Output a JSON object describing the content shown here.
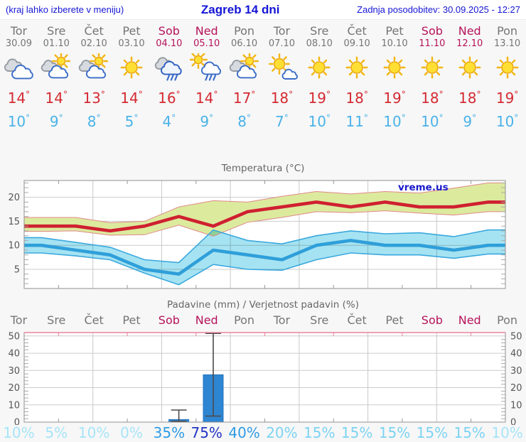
{
  "header": {
    "hint": "(kraj lahko izberete v meniju)",
    "title": "Zagreb 14 dni",
    "updated": "Zadnja posodobitev: 30.09.2025 - 12:27"
  },
  "misc": {
    "degree": "°",
    "watermark": "vreme.us"
  },
  "colors": {
    "link_blue": "#1515d6",
    "weekday_gray": "#757575",
    "weekend_crimson": "#b5135b",
    "tmax_red": "#d42a32",
    "tmin_blue": "#4ab2e8",
    "max_band_fill": "#dcea9e",
    "max_band_edge": "#e08888",
    "min_band_fill": "#a6e3f2",
    "min_band_edge": "#3aa8de",
    "bar_blue": "#2e86d3",
    "grid_gray": "#cccccc",
    "axis_gray": "#909090",
    "precip_top_pink": "#e8849e"
  },
  "days": [
    {
      "name": "Tor",
      "date": "30.09",
      "weekend": false,
      "icon": "cloudy",
      "tmax": "14",
      "tmin": "10"
    },
    {
      "name": "Sre",
      "date": "01.10",
      "weekend": false,
      "icon": "partly-cloudy",
      "tmax": "14",
      "tmin": "9"
    },
    {
      "name": "Čet",
      "date": "02.10",
      "weekend": false,
      "icon": "partly-cloudy",
      "tmax": "13",
      "tmin": "8"
    },
    {
      "name": "Pet",
      "date": "03.10",
      "weekend": false,
      "icon": "sunny",
      "tmax": "14",
      "tmin": "5"
    },
    {
      "name": "Sob",
      "date": "04.10",
      "weekend": true,
      "icon": "rain",
      "tmax": "16",
      "tmin": "4"
    },
    {
      "name": "Ned",
      "date": "05.10",
      "weekend": true,
      "icon": "sun-rain",
      "tmax": "14",
      "tmin": "9"
    },
    {
      "name": "Pon",
      "date": "06.10",
      "weekend": false,
      "icon": "partly-cloudy",
      "tmax": "17",
      "tmin": "8"
    },
    {
      "name": "Tor",
      "date": "07.10",
      "weekend": false,
      "icon": "mostly-sunny",
      "tmax": "18",
      "tmin": "7"
    },
    {
      "name": "Sre",
      "date": "08.10",
      "weekend": false,
      "icon": "sunny",
      "tmax": "19",
      "tmin": "10"
    },
    {
      "name": "Čet",
      "date": "09.10",
      "weekend": false,
      "icon": "sunny",
      "tmax": "18",
      "tmin": "11"
    },
    {
      "name": "Pet",
      "date": "10.10",
      "weekend": false,
      "icon": "sunny",
      "tmax": "19",
      "tmin": "10"
    },
    {
      "name": "Sob",
      "date": "11.10",
      "weekend": true,
      "icon": "sunny",
      "tmax": "18",
      "tmin": "10"
    },
    {
      "name": "Ned",
      "date": "12.10",
      "weekend": true,
      "icon": "sunny",
      "tmax": "18",
      "tmin": "9"
    },
    {
      "name": "Pon",
      "date": "13.10",
      "weekend": false,
      "icon": "sunny",
      "tmax": "19",
      "tmin": "10"
    }
  ],
  "chart_data": [
    {
      "type": "line",
      "title": "Temperatura (°C)",
      "categories": [
        "Tor",
        "Sre",
        "Čet",
        "Pet",
        "Sob",
        "Ned",
        "Pon",
        "Tor",
        "Sre",
        "Čet",
        "Pet",
        "Sob",
        "Ned",
        "Pon"
      ],
      "ylabel": "°C",
      "ylim": [
        1,
        23.5
      ],
      "yticks": [
        5,
        10,
        15,
        20
      ],
      "grid": true,
      "series": [
        {
          "name": "max temperatura",
          "values": [
            14,
            14,
            13,
            14,
            16,
            14,
            17,
            18,
            19,
            18,
            19,
            18,
            18,
            19
          ],
          "band_upper": [
            15.8,
            15.8,
            14.7,
            15.0,
            18.0,
            19.3,
            19.0,
            20.2,
            21.2,
            20.7,
            21.2,
            20.9,
            21.9,
            23.0
          ],
          "band_lower": [
            12.9,
            13.0,
            12.1,
            12.2,
            14.2,
            11.9,
            14.8,
            15.8,
            17.0,
            16.8,
            17.2,
            16.7,
            16.3,
            17.0
          ]
        },
        {
          "name": "min temperatura",
          "values": [
            10,
            9,
            8,
            5,
            4,
            9,
            8,
            7,
            10,
            11,
            10,
            10,
            9,
            10
          ],
          "band_upper": [
            11.6,
            10.6,
            9.6,
            7.0,
            6.4,
            13.2,
            11.0,
            10.3,
            12.0,
            13.0,
            12.4,
            12.6,
            11.8,
            13.2
          ],
          "band_lower": [
            8.4,
            7.8,
            7.0,
            4.2,
            1.8,
            6.0,
            5.0,
            4.8,
            7.0,
            8.4,
            8.0,
            8.0,
            7.3,
            8.2
          ]
        }
      ]
    },
    {
      "type": "bar",
      "title": "Padavine (mm) / Verjetnost padavin (%)",
      "categories": [
        "Tor",
        "Sre",
        "Čet",
        "Pet",
        "Sob",
        "Ned",
        "Pon",
        "Tor",
        "Sre",
        "Čet",
        "Pet",
        "Sob",
        "Ned",
        "Pon"
      ],
      "ylabel": "mm",
      "ylim": [
        0,
        52
      ],
      "yticks": [
        0,
        10,
        20,
        30,
        40,
        50
      ],
      "grid": true,
      "values": [
        0,
        0,
        0,
        0,
        1.5,
        27.5,
        0,
        0,
        0,
        0,
        0,
        0,
        0,
        0
      ],
      "whisker_low": [
        null,
        null,
        null,
        null,
        0.5,
        3.5,
        null,
        null,
        null,
        null,
        null,
        null,
        null,
        null
      ],
      "whisker_high": [
        null,
        null,
        null,
        null,
        7,
        51.5,
        null,
        null,
        null,
        null,
        null,
        null,
        null,
        null
      ],
      "probabilities": [
        "10%",
        "5%",
        "10%",
        "0%",
        "35%",
        "75%",
        "40%",
        "20%",
        "15%",
        "15%",
        "15%",
        "15%",
        "15%",
        "10%"
      ]
    }
  ]
}
